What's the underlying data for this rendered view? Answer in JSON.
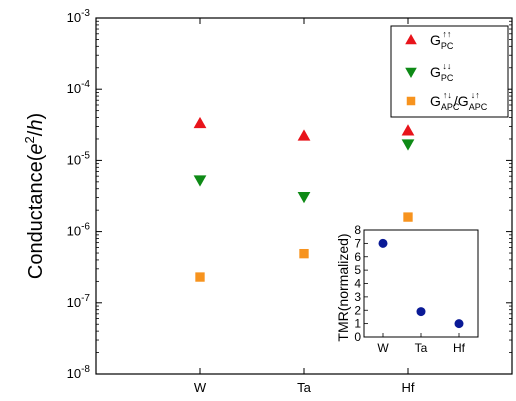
{
  "chart_data": [
    {
      "type": "scatter",
      "title": "",
      "xlabel": "",
      "ylabel": "Conductance",
      "ylabel_unit": "e²/h",
      "yscale": "log",
      "ylim": [
        1e-08,
        0.001
      ],
      "categories": [
        "W",
        "Ta",
        "Hf"
      ],
      "y_tick_labels": [
        {
          "base": "10",
          "exp": "-8"
        },
        {
          "base": "10",
          "exp": "-7"
        },
        {
          "base": "10",
          "exp": "-6"
        },
        {
          "base": "10",
          "exp": "-5"
        },
        {
          "base": "10",
          "exp": "-4"
        },
        {
          "base": "10",
          "exp": "-3"
        }
      ],
      "grid": false,
      "legend_position": "top-right",
      "series": [
        {
          "name": "G_PC^↑↑",
          "label": {
            "main": "G",
            "sub": "PC",
            "sup": "↑↑"
          },
          "marker": "triangle-up",
          "color": "#e8141b",
          "values": [
            3.3e-05,
            2.2e-05,
            2.6e-05
          ]
        },
        {
          "name": "G_PC^↓↓",
          "label": {
            "main": "G",
            "sub": "PC",
            "sup": "↓↓"
          },
          "marker": "triangle-down",
          "color": "#0e8a16",
          "values": [
            5.3e-06,
            3.1e-06,
            1.7e-05
          ]
        },
        {
          "name": "G_APC^↑↓/G_APC^↓↑",
          "label": {
            "main": "G",
            "sub": "APC",
            "sup": "↑↓",
            "sep": "/",
            "main2": "G",
            "sub2": "APC",
            "sup2": "↓↑"
          },
          "marker": "square",
          "color": "#f7931e",
          "values": [
            2.3e-07,
            4.9e-07,
            1.6e-06
          ]
        }
      ]
    },
    {
      "type": "scatter",
      "title": "",
      "xlabel": "",
      "ylabel": "TMR(normalized)",
      "ylim": [
        0,
        8
      ],
      "y_ticks": [
        0,
        1,
        2,
        3,
        4,
        5,
        6,
        7,
        8
      ],
      "categories": [
        "W",
        "Ta",
        "Hf"
      ],
      "grid": false,
      "series": [
        {
          "marker": "circle",
          "color": "#0a1a96",
          "values": [
            7.0,
            1.9,
            1.0
          ]
        }
      ]
    }
  ]
}
